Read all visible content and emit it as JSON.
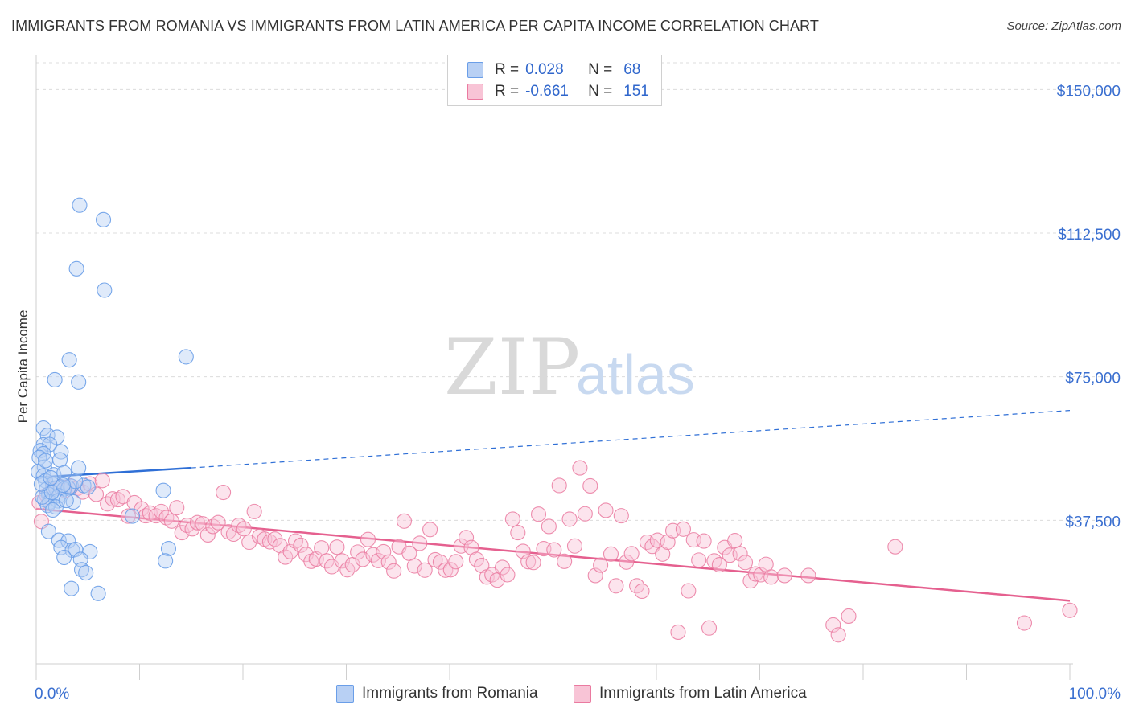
{
  "title": "IMMIGRANTS FROM ROMANIA VS IMMIGRANTS FROM LATIN AMERICA PER CAPITA INCOME CORRELATION CHART",
  "source": "Source: ZipAtlas.com",
  "watermark": {
    "zip": "ZIP",
    "atlas": "atlas"
  },
  "legend": {
    "rows": [
      {
        "r_label": "R =",
        "r_value": "0.028",
        "n_label": "N =",
        "n_value": "68"
      },
      {
        "r_label": "R =",
        "r_value": "-0.661",
        "n_label": "N =",
        "n_value": "151"
      }
    ]
  },
  "colors": {
    "romania": "#6a9ee8",
    "romania_fill": "#b8d0f4",
    "latin": "#ea7aa0",
    "latin_fill": "#f8c4d6",
    "romania_line": "#2f6fd6",
    "latin_line": "#e5608f",
    "tick_text": "#3a6fd0"
  },
  "chart_data": {
    "type": "scatter",
    "title": "IMMIGRANTS FROM ROMANIA VS IMMIGRANTS FROM LATIN AMERICA PER CAPITA INCOME CORRELATION CHART",
    "xlabel": "",
    "ylabel": "Per Capita Income",
    "xlim": [
      0,
      100
    ],
    "ylim": [
      0,
      157000
    ],
    "x_tick_labels": [
      "0.0%",
      "100.0%"
    ],
    "y_ticks": [
      37500,
      75000,
      112500,
      150000
    ],
    "y_tick_labels": [
      "$37,500",
      "$75,000",
      "$112,500",
      "$150,000"
    ],
    "grid": "horizontal dashed",
    "legend_position": "top-center",
    "series": [
      {
        "name": "Immigrants from Romania",
        "r": 0.028,
        "n": 68,
        "trend": {
          "x0": 0,
          "y0": 48700,
          "x_solid_end": 15,
          "y_solid_end": 51200,
          "x1": 100,
          "y1": 66200
        },
        "points": [
          [
            4.2,
            119800
          ],
          [
            6.5,
            116000
          ],
          [
            3.9,
            103200
          ],
          [
            6.6,
            97600
          ],
          [
            3.2,
            79400
          ],
          [
            14.5,
            80200
          ],
          [
            1.8,
            74200
          ],
          [
            4.1,
            73600
          ],
          [
            0.7,
            61600
          ],
          [
            1.1,
            59700
          ],
          [
            2.0,
            59200
          ],
          [
            0.7,
            57200
          ],
          [
            1.3,
            57300
          ],
          [
            0.4,
            55700
          ],
          [
            2.4,
            55400
          ],
          [
            0.7,
            54900
          ],
          [
            0.3,
            53900
          ],
          [
            2.3,
            53300
          ],
          [
            0.8,
            51400
          ],
          [
            4.1,
            51200
          ],
          [
            0.2,
            50200
          ],
          [
            0.7,
            49100
          ],
          [
            1.7,
            49400
          ],
          [
            2.7,
            49900
          ],
          [
            0.9,
            47800
          ],
          [
            1.6,
            46900
          ],
          [
            2.4,
            46100
          ],
          [
            3.4,
            46400
          ],
          [
            4.6,
            46600
          ],
          [
            5.0,
            46200
          ],
          [
            1.0,
            45600
          ],
          [
            1.9,
            45900
          ],
          [
            2.7,
            45700
          ],
          [
            3.1,
            46000
          ],
          [
            12.3,
            45300
          ],
          [
            1.2,
            44300
          ],
          [
            2.2,
            43900
          ],
          [
            0.8,
            42900
          ],
          [
            1.3,
            42300
          ],
          [
            2.1,
            42600
          ],
          [
            3.6,
            42300
          ],
          [
            1.1,
            41400
          ],
          [
            1.9,
            41000
          ],
          [
            1.6,
            40200
          ],
          [
            9.3,
            38600
          ],
          [
            1.2,
            34600
          ],
          [
            2.2,
            32300
          ],
          [
            3.1,
            32100
          ],
          [
            2.4,
            30400
          ],
          [
            3.5,
            29700
          ],
          [
            3.8,
            29900
          ],
          [
            5.2,
            29300
          ],
          [
            12.8,
            30100
          ],
          [
            2.7,
            27800
          ],
          [
            4.3,
            27300
          ],
          [
            12.5,
            26900
          ],
          [
            4.4,
            24600
          ],
          [
            4.8,
            23800
          ],
          [
            3.4,
            19700
          ],
          [
            6.0,
            18400
          ],
          [
            0.6,
            43600
          ],
          [
            1.5,
            44800
          ],
          [
            2.9,
            42700
          ],
          [
            0.5,
            47000
          ],
          [
            3.8,
            47700
          ],
          [
            1.4,
            48600
          ],
          [
            0.9,
            53100
          ],
          [
            2.6,
            46700
          ]
        ]
      },
      {
        "name": "Immigrants from Latin America",
        "r": -0.661,
        "n": 151,
        "trend": {
          "x0": 0,
          "y0": 40500,
          "x1": 100,
          "y1": 16500
        },
        "points": [
          [
            0.3,
            42100
          ],
          [
            0.5,
            37200
          ],
          [
            1.0,
            44100
          ],
          [
            1.6,
            45900
          ],
          [
            2.3,
            46300
          ],
          [
            2.8,
            45300
          ],
          [
            3.3,
            46500
          ],
          [
            4.0,
            45900
          ],
          [
            4.5,
            44900
          ],
          [
            5.2,
            47000
          ],
          [
            5.8,
            44300
          ],
          [
            6.4,
            47900
          ],
          [
            6.9,
            41800
          ],
          [
            7.4,
            43100
          ],
          [
            7.9,
            42900
          ],
          [
            8.4,
            43700
          ],
          [
            8.9,
            38600
          ],
          [
            9.5,
            42100
          ],
          [
            10.2,
            40500
          ],
          [
            10.6,
            38700
          ],
          [
            11.0,
            39400
          ],
          [
            11.6,
            38700
          ],
          [
            12.1,
            39800
          ],
          [
            12.6,
            38200
          ],
          [
            13.1,
            37300
          ],
          [
            13.6,
            40800
          ],
          [
            14.1,
            34300
          ],
          [
            14.6,
            36200
          ],
          [
            15.1,
            35300
          ],
          [
            15.6,
            36900
          ],
          [
            16.1,
            36600
          ],
          [
            16.6,
            33700
          ],
          [
            17.1,
            35900
          ],
          [
            17.6,
            36900
          ],
          [
            18.1,
            44800
          ],
          [
            18.6,
            34500
          ],
          [
            19.1,
            33900
          ],
          [
            19.6,
            36200
          ],
          [
            20.1,
            35300
          ],
          [
            20.6,
            31800
          ],
          [
            21.1,
            39800
          ],
          [
            21.6,
            33300
          ],
          [
            22.1,
            32600
          ],
          [
            22.6,
            31900
          ],
          [
            23.1,
            32600
          ],
          [
            23.6,
            30900
          ],
          [
            24.1,
            27900
          ],
          [
            24.6,
            29300
          ],
          [
            25.1,
            32100
          ],
          [
            25.6,
            31000
          ],
          [
            26.1,
            28600
          ],
          [
            26.6,
            26800
          ],
          [
            27.1,
            27400
          ],
          [
            27.6,
            30300
          ],
          [
            28.1,
            26900
          ],
          [
            28.6,
            25400
          ],
          [
            29.1,
            30500
          ],
          [
            29.6,
            26900
          ],
          [
            30.1,
            24600
          ],
          [
            30.6,
            25900
          ],
          [
            31.1,
            29200
          ],
          [
            31.6,
            27300
          ],
          [
            32.1,
            32500
          ],
          [
            32.6,
            28500
          ],
          [
            33.1,
            27000
          ],
          [
            33.6,
            29300
          ],
          [
            34.1,
            26600
          ],
          [
            34.6,
            24300
          ],
          [
            35.1,
            30600
          ],
          [
            35.6,
            37300
          ],
          [
            36.1,
            28900
          ],
          [
            36.6,
            25600
          ],
          [
            37.1,
            31500
          ],
          [
            37.6,
            24500
          ],
          [
            38.1,
            35100
          ],
          [
            38.6,
            27200
          ],
          [
            39.1,
            26600
          ],
          [
            39.6,
            24500
          ],
          [
            40.1,
            24600
          ],
          [
            40.6,
            26700
          ],
          [
            41.1,
            30800
          ],
          [
            41.6,
            33000
          ],
          [
            42.1,
            30400
          ],
          [
            42.6,
            27300
          ],
          [
            43.1,
            25700
          ],
          [
            43.6,
            22700
          ],
          [
            44.1,
            23300
          ],
          [
            44.6,
            21900
          ],
          [
            45.1,
            25200
          ],
          [
            45.6,
            23300
          ],
          [
            46.1,
            37800
          ],
          [
            46.6,
            34300
          ],
          [
            47.1,
            29400
          ],
          [
            47.6,
            26700
          ],
          [
            48.1,
            26500
          ],
          [
            48.6,
            39100
          ],
          [
            49.1,
            30100
          ],
          [
            49.6,
            35900
          ],
          [
            50.1,
            29800
          ],
          [
            50.6,
            46600
          ],
          [
            51.1,
            26800
          ],
          [
            51.6,
            37800
          ],
          [
            52.1,
            30800
          ],
          [
            52.6,
            51200
          ],
          [
            53.1,
            39200
          ],
          [
            53.6,
            46500
          ],
          [
            54.1,
            23100
          ],
          [
            54.6,
            25800
          ],
          [
            55.1,
            40100
          ],
          [
            55.6,
            28700
          ],
          [
            56.1,
            20400
          ],
          [
            56.6,
            38700
          ],
          [
            57.1,
            26600
          ],
          [
            57.6,
            28800
          ],
          [
            58.1,
            20400
          ],
          [
            58.6,
            19000
          ],
          [
            59.1,
            31800
          ],
          [
            59.6,
            30700
          ],
          [
            60.1,
            32300
          ],
          [
            60.6,
            28700
          ],
          [
            61.1,
            31800
          ],
          [
            61.6,
            34800
          ],
          [
            62.1,
            8300
          ],
          [
            62.6,
            35200
          ],
          [
            63.1,
            19100
          ],
          [
            63.6,
            32400
          ],
          [
            64.1,
            27100
          ],
          [
            64.6,
            32100
          ],
          [
            65.1,
            9400
          ],
          [
            65.6,
            26900
          ],
          [
            66.1,
            25900
          ],
          [
            66.6,
            30400
          ],
          [
            67.1,
            28400
          ],
          [
            67.6,
            32200
          ],
          [
            68.1,
            28800
          ],
          [
            68.6,
            26500
          ],
          [
            69.1,
            21700
          ],
          [
            69.6,
            23500
          ],
          [
            70.1,
            23300
          ],
          [
            70.6,
            26000
          ],
          [
            71.1,
            22700
          ],
          [
            72.4,
            23100
          ],
          [
            74.7,
            23100
          ],
          [
            77.1,
            10200
          ],
          [
            77.6,
            7600
          ],
          [
            78.6,
            12500
          ],
          [
            83.1,
            30600
          ],
          [
            95.6,
            10700
          ],
          [
            100.0,
            14000
          ]
        ]
      }
    ]
  },
  "bottom_legend": {
    "items": [
      "Immigrants from Romania",
      "Immigrants from Latin America"
    ]
  }
}
